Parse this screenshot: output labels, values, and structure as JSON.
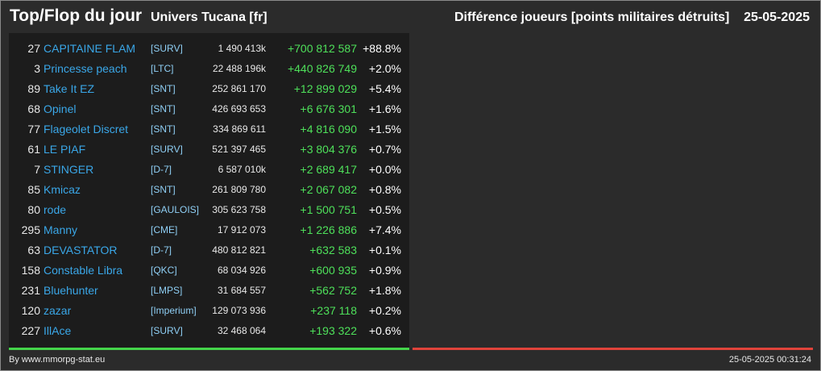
{
  "header": {
    "title": "Top/Flop du jour",
    "universe": "Univers Tucana [fr]",
    "subtitle": "Différence joueurs [points militaires détruits]",
    "date": "25-05-2025"
  },
  "colors": {
    "background": "#2b2b2b",
    "panel": "#1c1c1c",
    "name": "#3aa7e8",
    "alliance": "#8fcff5",
    "positive": "#4ee05a",
    "top_bar": "#44d44a",
    "flop_bar": "#e0433a"
  },
  "top": [
    {
      "rank": "27",
      "name": "CAPITAINE FLAM",
      "alliance": "[SURV]",
      "points": "1 490 413k",
      "diff": "+700 812 587",
      "pct": "+88.8%"
    },
    {
      "rank": "3",
      "name": "Princesse peach",
      "alliance": "[LTC]",
      "points": "22 488 196k",
      "diff": "+440 826 749",
      "pct": "+2.0%"
    },
    {
      "rank": "89",
      "name": "Take It EZ",
      "alliance": "[SNT]",
      "points": "252 861 170",
      "diff": "+12 899 029",
      "pct": "+5.4%"
    },
    {
      "rank": "68",
      "name": "Opinel",
      "alliance": "[SNT]",
      "points": "426 693 653",
      "diff": "+6 676 301",
      "pct": "+1.6%"
    },
    {
      "rank": "77",
      "name": "Flageolet Discret",
      "alliance": "[SNT]",
      "points": "334 869 611",
      "diff": "+4 816 090",
      "pct": "+1.5%"
    },
    {
      "rank": "61",
      "name": "LE PIAF",
      "alliance": "[SURV]",
      "points": "521 397 465",
      "diff": "+3 804 376",
      "pct": "+0.7%"
    },
    {
      "rank": "7",
      "name": "STINGER",
      "alliance": "[D-7]",
      "points": "6 587 010k",
      "diff": "+2 689 417",
      "pct": "+0.0%"
    },
    {
      "rank": "85",
      "name": "Kmicaz",
      "alliance": "[SNT]",
      "points": "261 809 780",
      "diff": "+2 067 082",
      "pct": "+0.8%"
    },
    {
      "rank": "80",
      "name": "rode",
      "alliance": "[GAULOIS]",
      "points": "305 623 758",
      "diff": "+1 500 751",
      "pct": "+0.5%"
    },
    {
      "rank": "295",
      "name": "Manny",
      "alliance": "[CME]",
      "points": "17 912 073",
      "diff": "+1 226 886",
      "pct": "+7.4%"
    },
    {
      "rank": "63",
      "name": "DEVASTATOR",
      "alliance": "[D-7]",
      "points": "480 812 821",
      "diff": "+632 583",
      "pct": "+0.1%"
    },
    {
      "rank": "158",
      "name": "Constable Libra",
      "alliance": "[QKC]",
      "points": "68 034 926",
      "diff": "+600 935",
      "pct": "+0.9%"
    },
    {
      "rank": "231",
      "name": "Bluehunter",
      "alliance": "[LMPS]",
      "points": "31 684 557",
      "diff": "+562 752",
      "pct": "+1.8%"
    },
    {
      "rank": "120",
      "name": "zazar",
      "alliance": "[Imperium]",
      "points": "129 073 936",
      "diff": "+237 118",
      "pct": "+0.2%"
    },
    {
      "rank": "227",
      "name": "IllAce",
      "alliance": "[SURV]",
      "points": "32 468 064",
      "diff": "+193 322",
      "pct": "+0.6%"
    }
  ],
  "footer": {
    "credit": "By www.mmorpg-stat.eu",
    "timestamp": "25-05-2025 00:31:24"
  }
}
